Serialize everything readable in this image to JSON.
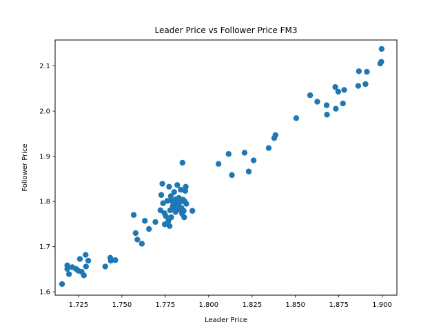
{
  "chart_data": {
    "type": "scatter",
    "title": "Leader Price vs Follower Price FM3",
    "xlabel": "Leader Price",
    "ylabel": "Follower Price",
    "xlim": [
      1.7115,
      1.9085
    ],
    "ylim": [
      1.5926,
      2.1574
    ],
    "xticks": [
      1.725,
      1.75,
      1.775,
      1.8,
      1.825,
      1.85,
      1.875,
      1.9
    ],
    "xtick_labels": [
      "1.725",
      "1.750",
      "1.775",
      "1.800",
      "1.825",
      "1.850",
      "1.875",
      "1.900"
    ],
    "yticks": [
      1.6,
      1.7,
      1.8,
      1.9,
      2.0,
      2.1
    ],
    "ytick_labels": [
      "1.6",
      "1.7",
      "1.8",
      "1.9",
      "2.0",
      "2.1"
    ],
    "grid": false,
    "marker_color": "#1f77b4",
    "points": [
      [
        1.7155,
        1.6171
      ],
      [
        1.7185,
        1.6585
      ],
      [
        1.7185,
        1.6507
      ],
      [
        1.7195,
        1.6391
      ],
      [
        1.7214,
        1.6545
      ],
      [
        1.7235,
        1.6507
      ],
      [
        1.7248,
        1.6468
      ],
      [
        1.7258,
        1.6727
      ],
      [
        1.7268,
        1.6442
      ],
      [
        1.7281,
        1.6364
      ],
      [
        1.7291,
        1.6818
      ],
      [
        1.7293,
        1.6559
      ],
      [
        1.7306,
        1.6688
      ],
      [
        1.7404,
        1.6559
      ],
      [
        1.7433,
        1.6753
      ],
      [
        1.7436,
        1.6688
      ],
      [
        1.7462,
        1.6701
      ],
      [
        1.7568,
        1.7701
      ],
      [
        1.7579,
        1.7299
      ],
      [
        1.7589,
        1.7156
      ],
      [
        1.7615,
        1.7065
      ],
      [
        1.7632,
        1.7571
      ],
      [
        1.7656,
        1.739
      ],
      [
        1.7693,
        1.7545
      ],
      [
        1.7722,
        1.7805
      ],
      [
        1.7727,
        1.8143
      ],
      [
        1.7733,
        1.839
      ],
      [
        1.7737,
        1.7961
      ],
      [
        1.7745,
        1.774
      ],
      [
        1.7747,
        1.7494
      ],
      [
        1.7753,
        1.7675
      ],
      [
        1.7762,
        1.8013
      ],
      [
        1.7768,
        1.7571
      ],
      [
        1.7772,
        1.8325
      ],
      [
        1.7775,
        1.7455
      ],
      [
        1.7778,
        1.7805
      ],
      [
        1.7782,
        1.8117
      ],
      [
        1.7784,
        1.7649
      ],
      [
        1.7789,
        1.8013
      ],
      [
        1.7793,
        1.7896
      ],
      [
        1.7797,
        1.7948
      ],
      [
        1.7801,
        1.8208
      ],
      [
        1.7805,
        1.7831
      ],
      [
        1.7809,
        1.7766
      ],
      [
        1.7812,
        1.8052
      ],
      [
        1.7815,
        1.7974
      ],
      [
        1.7819,
        1.8364
      ],
      [
        1.7823,
        1.7909
      ],
      [
        1.7828,
        1.8078
      ],
      [
        1.7831,
        1.7818
      ],
      [
        1.7835,
        1.7987
      ],
      [
        1.7839,
        1.826
      ],
      [
        1.7843,
        1.7857
      ],
      [
        1.7847,
        1.7727
      ],
      [
        1.7849,
        1.8857
      ],
      [
        1.7852,
        1.8039
      ],
      [
        1.7856,
        1.7792
      ],
      [
        1.7859,
        1.7649
      ],
      [
        1.7862,
        1.8
      ],
      [
        1.7865,
        1.8234
      ],
      [
        1.7868,
        1.8325
      ],
      [
        1.7871,
        1.7948
      ],
      [
        1.7906,
        1.7792
      ],
      [
        1.8057,
        1.8831
      ],
      [
        1.8115,
        1.9052
      ],
      [
        1.8134,
        1.8584
      ],
      [
        1.8207,
        1.9078
      ],
      [
        1.8231,
        1.8662
      ],
      [
        1.8259,
        1.8909
      ],
      [
        1.8346,
        1.9182
      ],
      [
        1.8378,
        1.9403
      ],
      [
        1.8385,
        1.9468
      ],
      [
        1.8505,
        1.9844
      ],
      [
        1.8585,
        2.0351
      ],
      [
        1.8626,
        2.0208
      ],
      [
        1.868,
        2.013
      ],
      [
        1.8682,
        1.9922
      ],
      [
        1.873,
        2.0532
      ],
      [
        1.8733,
        2.0052
      ],
      [
        1.8747,
        2.0429
      ],
      [
        1.8774,
        2.0169
      ],
      [
        1.8781,
        2.0468
      ],
      [
        1.8862,
        2.0558
      ],
      [
        1.8866,
        2.0883
      ],
      [
        1.8904,
        2.0597
      ],
      [
        1.8912,
        2.087
      ],
      [
        1.8989,
        2.1052
      ],
      [
        1.8995,
        2.1091
      ],
      [
        1.8997,
        2.1377
      ]
    ]
  }
}
